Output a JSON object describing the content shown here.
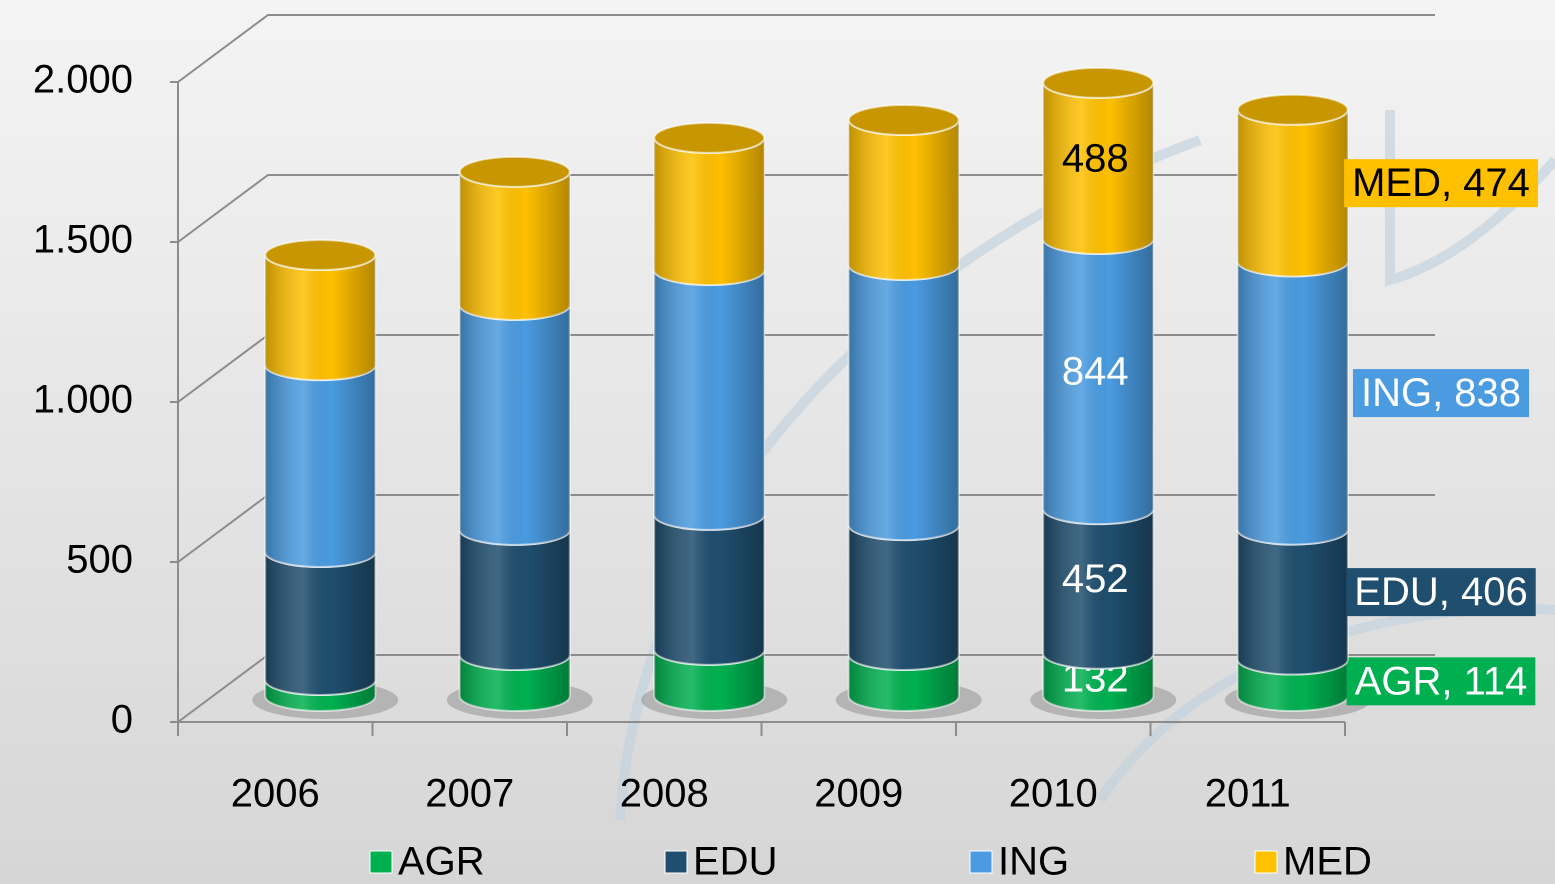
{
  "chart_data": {
    "type": "bar3d_stacked",
    "categories": [
      "2006",
      "2007",
      "2008",
      "2009",
      "2010",
      "2011"
    ],
    "series": [
      {
        "name": "AGR",
        "color": "#00b050",
        "values": [
          50,
          128,
          144,
          128,
          132,
          114
        ],
        "value_labels": [
          null,
          null,
          null,
          null,
          "132",
          "AGR, 114"
        ]
      },
      {
        "name": "EDU",
        "color": "#1f4e6e",
        "values": [
          400,
          391,
          422,
          406,
          452,
          406
        ],
        "value_labels": [
          null,
          null,
          null,
          null,
          "452",
          "EDU, 406"
        ]
      },
      {
        "name": "ING",
        "color": "#4a9be0",
        "values": [
          584,
          703,
          765,
          813,
          844,
          838
        ],
        "value_labels": [
          null,
          null,
          null,
          null,
          "844",
          "ING, 838"
        ]
      },
      {
        "name": "MED",
        "color": "#ffc000",
        "values": [
          344,
          416,
          413,
          453,
          488,
          474
        ],
        "value_labels": [
          null,
          null,
          null,
          null,
          "488",
          "MED, 474"
        ]
      }
    ],
    "ylim": [
      0,
      2000
    ],
    "yticks": [
      0,
      500,
      {
        "value": 1000,
        "label": "1.000"
      },
      {
        "value": 1500,
        "label": "1.500"
      },
      {
        "value": 2000,
        "label": "2.000"
      }
    ],
    "grid": true,
    "legend": "bottom"
  }
}
